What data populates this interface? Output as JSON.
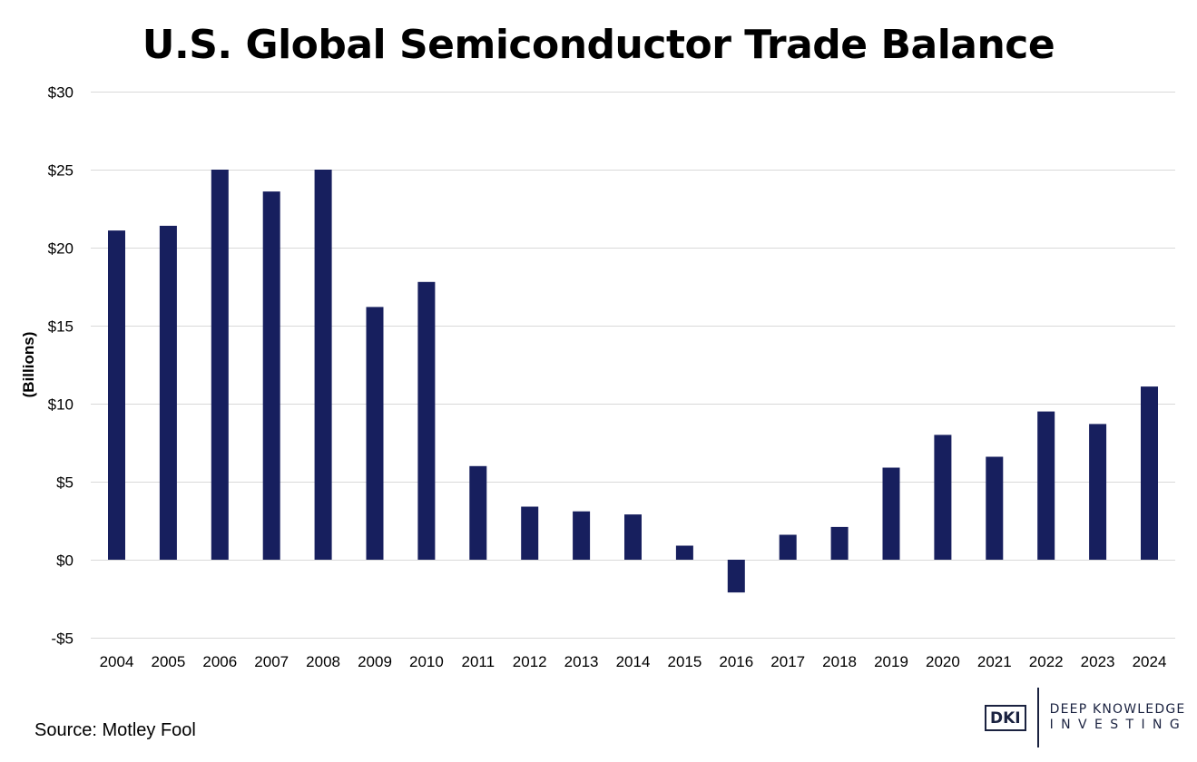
{
  "chart_data": {
    "type": "bar",
    "title": "U.S. Global Semiconductor Trade Balance",
    "ylabel": "(Billions)",
    "xlabel": "",
    "categories": [
      "2004",
      "2005",
      "2006",
      "2007",
      "2008",
      "2009",
      "2010",
      "2011",
      "2012",
      "2013",
      "2014",
      "2015",
      "2016",
      "2017",
      "2018",
      "2019",
      "2020",
      "2021",
      "2022",
      "2023",
      "2024"
    ],
    "values": [
      21.1,
      21.4,
      25.0,
      23.6,
      25.0,
      16.2,
      17.8,
      6.0,
      3.4,
      3.1,
      2.9,
      0.9,
      -2.1,
      1.6,
      2.1,
      5.9,
      8.0,
      6.6,
      9.5,
      8.7,
      11.1
    ],
    "ylim": [
      -5,
      30
    ],
    "yticks": [
      30,
      25,
      20,
      15,
      10,
      5,
      0,
      -5
    ],
    "ytick_labels": [
      "$30",
      "$25",
      "$20",
      "$15",
      "$10",
      "$5",
      "$0",
      "-$5"
    ],
    "grid": true,
    "bar_color": "#171f5e",
    "grid_color": "#d9d9d9"
  },
  "source": "Source: Motley Fool",
  "logo": {
    "mark": "DKI",
    "line1": "DEEP KNOWLEDGE",
    "line2": "INVESTING"
  }
}
